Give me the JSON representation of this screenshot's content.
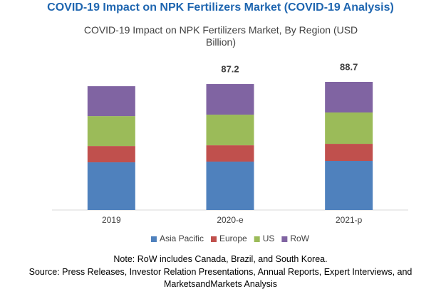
{
  "title": "COVID-19 Impact on NPK Fertilizers Market (COVID-19 Analysis)",
  "chart_data": {
    "type": "stacked-bar",
    "subtitle": "COVID-19 Impact on NPK Fertilizers Market, By Region (USD Billion)",
    "categories": [
      "2019",
      "2020-e",
      "2021-p"
    ],
    "series": [
      {
        "name": "Asia Pacific",
        "color": "#4f81bd",
        "values": [
          33.0,
          33.5,
          34.0
        ]
      },
      {
        "name": "Europe",
        "color": "#c0504d",
        "values": [
          11.3,
          11.3,
          11.8
        ]
      },
      {
        "name": "US",
        "color": "#9bbb59",
        "values": [
          20.7,
          21.2,
          21.7
        ]
      },
      {
        "name": "RoW",
        "color": "#8064a2",
        "values": [
          20.7,
          21.2,
          21.2
        ]
      }
    ],
    "totals": [
      null,
      87.2,
      88.7
    ],
    "legend": "bottom"
  },
  "note": "Note: RoW includes Canada, Brazil, and South Korea.",
  "source": "Source: Press Releases, Investor Relation Presentations, Annual Reports, Expert Interviews, and MarketsandMarkets Analysis"
}
